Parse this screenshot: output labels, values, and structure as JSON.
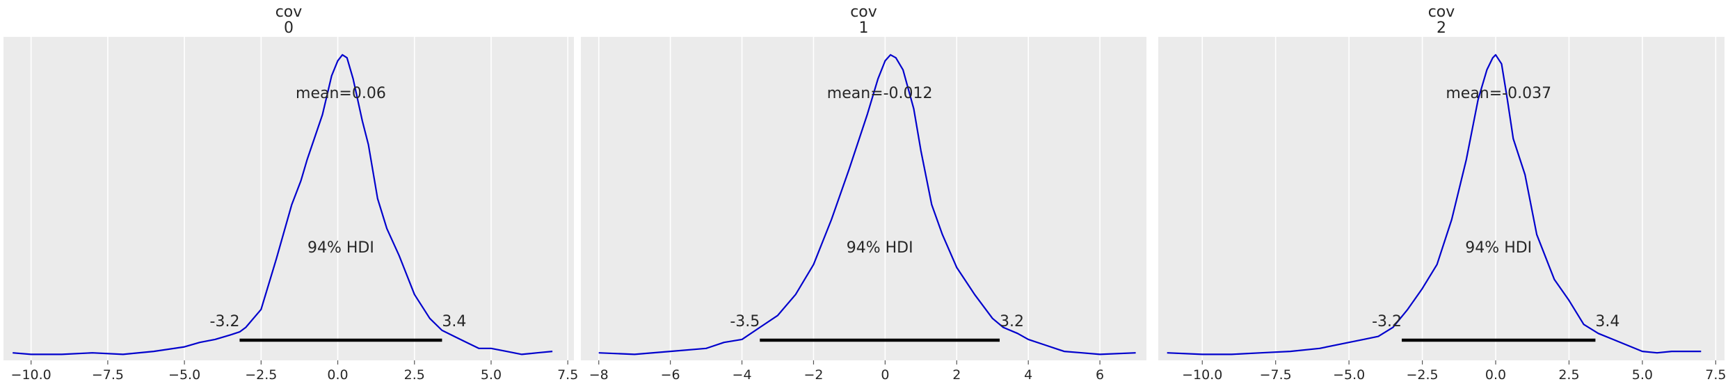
{
  "chart_data": [
    {
      "type": "line",
      "title": "cov",
      "subtitle": "0",
      "xlim": [
        -10.9,
        7.7
      ],
      "ylim": [
        -0.02,
        1.06
      ],
      "xticks": [
        -10.0,
        -7.5,
        -5.0,
        -2.5,
        0.0,
        2.5,
        5.0,
        7.5
      ],
      "xtick_labels": [
        "−10.0",
        "−7.5",
        "−5.0",
        "−2.5",
        "0.0",
        "2.5",
        "5.0",
        "7.5"
      ],
      "grid": true,
      "color": "#0000cc",
      "x": [
        -10.6,
        -10.0,
        -9.0,
        -8.0,
        -7.0,
        -6.0,
        -5.0,
        -4.5,
        -4.0,
        -3.5,
        -3.2,
        -3.0,
        -2.5,
        -2.0,
        -1.5,
        -1.2,
        -1.0,
        -0.5,
        -0.2,
        0.0,
        0.15,
        0.3,
        0.5,
        0.8,
        1.0,
        1.3,
        1.6,
        2.0,
        2.5,
        3.0,
        3.4,
        3.8,
        4.2,
        4.6,
        5.0,
        5.5,
        6.0,
        6.5,
        7.0
      ],
      "y": [
        0.005,
        0.0,
        0.0,
        0.005,
        0.0,
        0.01,
        0.025,
        0.04,
        0.05,
        0.065,
        0.075,
        0.09,
        0.15,
        0.32,
        0.5,
        0.58,
        0.65,
        0.8,
        0.93,
        0.98,
        1.0,
        0.99,
        0.92,
        0.78,
        0.7,
        0.52,
        0.42,
        0.33,
        0.2,
        0.12,
        0.08,
        0.06,
        0.04,
        0.02,
        0.02,
        0.01,
        0.0,
        0.005,
        0.01
      ],
      "mean_label": "mean=0.06",
      "hdi_label": "94% HDI",
      "hdi": [
        -3.2,
        3.4
      ],
      "hdi_low_label": "-3.2",
      "hdi_high_label": "3.4"
    },
    {
      "type": "line",
      "title": "cov",
      "subtitle": "1",
      "xlim": [
        -8.5,
        7.3
      ],
      "ylim": [
        -0.02,
        1.06
      ],
      "xticks": [
        -8,
        -6,
        -4,
        -2,
        0,
        2,
        4,
        6
      ],
      "xtick_labels": [
        "−8",
        "−6",
        "−4",
        "−2",
        "0",
        "2",
        "4",
        "6"
      ],
      "grid": true,
      "color": "#0000cc",
      "x": [
        -8.0,
        -7.0,
        -6.0,
        -5.0,
        -4.5,
        -4.0,
        -3.5,
        -3.0,
        -2.5,
        -2.0,
        -1.5,
        -1.0,
        -0.5,
        -0.2,
        0.0,
        0.15,
        0.3,
        0.5,
        0.8,
        1.0,
        1.3,
        1.6,
        2.0,
        2.5,
        3.0,
        3.3,
        3.7,
        4.0,
        4.5,
        5.0,
        5.5,
        6.0,
        7.0
      ],
      "y": [
        0.005,
        0.0,
        0.01,
        0.02,
        0.04,
        0.05,
        0.09,
        0.13,
        0.2,
        0.3,
        0.45,
        0.62,
        0.8,
        0.92,
        0.98,
        1.0,
        0.99,
        0.95,
        0.82,
        0.68,
        0.5,
        0.4,
        0.29,
        0.2,
        0.12,
        0.09,
        0.07,
        0.05,
        0.03,
        0.01,
        0.005,
        0.0,
        0.005
      ],
      "mean_label": "mean=-0.012",
      "hdi_label": "94% HDI",
      "hdi": [
        -3.5,
        3.2
      ],
      "hdi_low_label": "-3.5",
      "hdi_high_label": "3.2"
    },
    {
      "type": "line",
      "title": "cov",
      "subtitle": "2",
      "xlim": [
        -11.5,
        7.8
      ],
      "ylim": [
        -0.02,
        1.06
      ],
      "xticks": [
        -10.0,
        -7.5,
        -5.0,
        -2.5,
        0.0,
        2.5,
        5.0,
        7.5
      ],
      "xtick_labels": [
        "−10.0",
        "−7.5",
        "−5.0",
        "−2.5",
        "0.0",
        "2.5",
        "5.0",
        "7.5"
      ],
      "grid": true,
      "color": "#0000cc",
      "x": [
        -11.2,
        -10.0,
        -9.0,
        -8.0,
        -7.0,
        -6.0,
        -5.0,
        -4.5,
        -4.0,
        -3.5,
        -3.0,
        -2.5,
        -2.0,
        -1.5,
        -1.0,
        -0.6,
        -0.3,
        -0.1,
        0.0,
        0.2,
        0.4,
        0.6,
        1.0,
        1.4,
        1.8,
        2.0,
        2.5,
        3.0,
        3.5,
        4.0,
        4.5,
        5.0,
        5.5,
        6.0,
        7.0
      ],
      "y": [
        0.005,
        0.0,
        0.0,
        0.005,
        0.01,
        0.02,
        0.04,
        0.05,
        0.06,
        0.09,
        0.15,
        0.22,
        0.3,
        0.45,
        0.65,
        0.85,
        0.95,
        0.99,
        1.0,
        0.97,
        0.85,
        0.72,
        0.6,
        0.4,
        0.3,
        0.25,
        0.18,
        0.1,
        0.07,
        0.05,
        0.03,
        0.01,
        0.005,
        0.01,
        0.01
      ],
      "mean_label": "mean=-0.037",
      "hdi_label": "94% HDI",
      "hdi": [
        -3.2,
        3.4
      ],
      "hdi_low_label": "-3.2",
      "hdi_high_label": "3.4"
    }
  ]
}
